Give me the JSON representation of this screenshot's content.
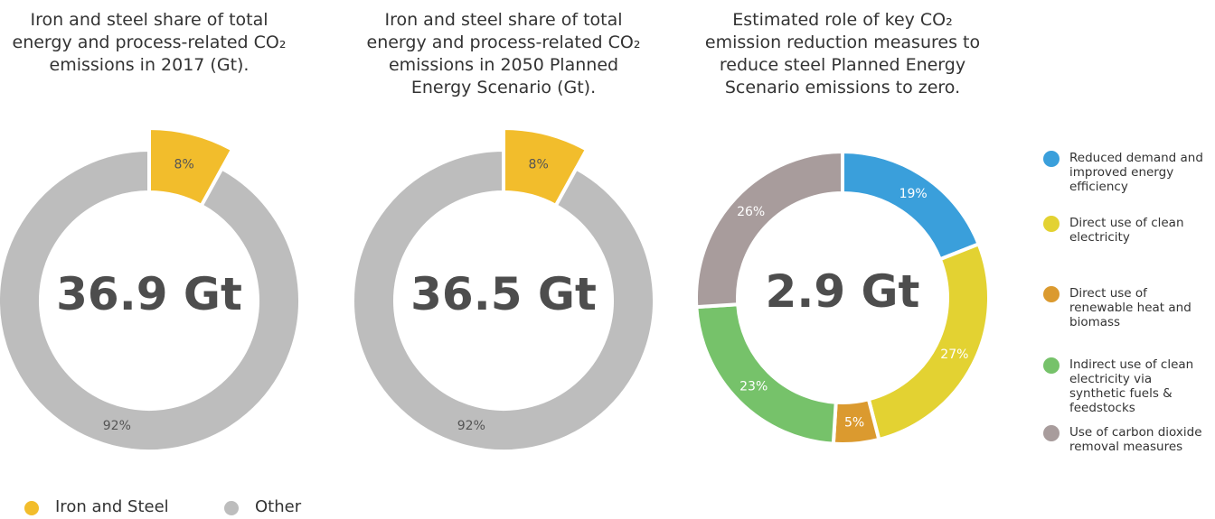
{
  "chart_data": [
    {
      "type": "donut",
      "title": "Iron and steel share of total energy and process-related CO₂ emissions in 2017 (Gt).",
      "center_label": "36.9 Gt",
      "categories": [
        "Iron and Steel",
        "Other"
      ],
      "values": [
        8,
        92
      ],
      "value_labels": [
        "8%",
        "92%"
      ],
      "colors": [
        "#f2bd2c",
        "#bdbdbd"
      ]
    },
    {
      "type": "donut",
      "title": "Iron and steel share of total energy and process-related CO₂ emissions in 2050 Planned Energy Scenario (Gt).",
      "center_label": "36.5 Gt",
      "values": [
        8,
        92
      ],
      "value_labels": [
        "8%",
        "92%"
      ],
      "colors": [
        "#f2bd2c",
        "#bdbdbd"
      ]
    },
    {
      "type": "donut",
      "title": "Estimated role of key CO₂ emission reduction measures to reduce steel Planned Energy Scenario emissions to zero.",
      "center_label": "2.9 Gt",
      "categories": [
        "Reduced demand and improved energy efficiency",
        "Direct use of clean electricity",
        "Direct use of renewable heat and biomass",
        "Indirect use of clean electricity via synthetic fuels & feedstocks",
        "Use of carbon dioxide removal measures"
      ],
      "values": [
        19,
        27,
        5,
        23,
        26
      ],
      "value_labels": [
        "19%",
        "27%",
        "5%",
        "23%",
        "26%"
      ],
      "colors": [
        "#3a9fdb",
        "#e3d232",
        "#db9a2f",
        "#76c26a",
        "#a89c9c"
      ]
    }
  ]
}
